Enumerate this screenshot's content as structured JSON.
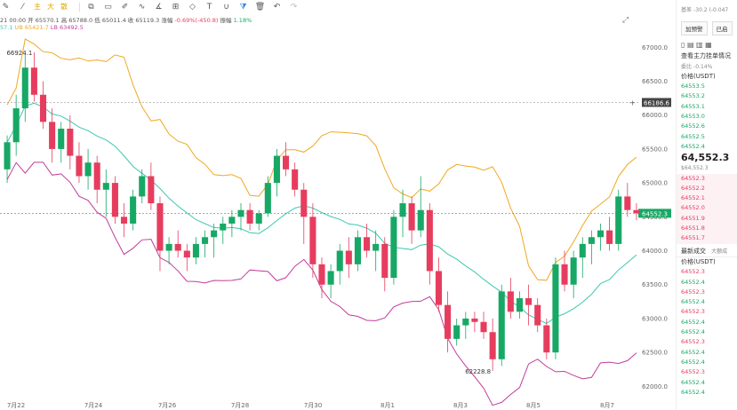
{
  "toolbar": {
    "ma_labels": [
      "主",
      "大",
      "散"
    ]
  },
  "info": {
    "date": "21 00:00",
    "open_label": "开",
    "open": "65570.1",
    "high_label": "高",
    "high": "65788.0",
    "low_label": "低",
    "low": "65011.4",
    "close_label": "收",
    "close": "65119.3",
    "change_label": "涨幅",
    "change": "-0.69%(-450.8)",
    "amp_label": "振幅",
    "amp": "1.18%",
    "bb_partial": "57.1",
    "ub_label": "UB",
    "ub": "65421.7",
    "lb_label": "LB",
    "lb": "63492.5"
  },
  "chart_data": {
    "type": "candlestick",
    "y_ticks": [
      67000,
      66500,
      66000,
      65500,
      65000,
      64500,
      64000,
      63500,
      63000,
      62500,
      62000
    ],
    "ylim": [
      61900,
      67200
    ],
    "x_ticks": [
      "7月22",
      "7月24",
      "7月26",
      "7月28",
      "7月30",
      "8月1",
      "8月3",
      "8月5",
      "8月7"
    ],
    "last_price": 64552.3,
    "reference_price": 66186.6,
    "max_annotation": "66924.1",
    "min_annotation": "62228.8",
    "candles": [
      [
        65200,
        65700,
        65000,
        65600
      ],
      [
        65600,
        66300,
        65400,
        66100
      ],
      [
        66100,
        66900,
        65900,
        66700
      ],
      [
        66700,
        66924,
        66200,
        66300
      ],
      [
        66300,
        66500,
        65800,
        65900
      ],
      [
        65900,
        66100,
        65300,
        65500
      ],
      [
        65500,
        65900,
        65300,
        65800
      ],
      [
        65800,
        66000,
        65200,
        65400
      ],
      [
        65400,
        65600,
        65000,
        65100
      ],
      [
        65100,
        65500,
        64900,
        65300
      ],
      [
        65300,
        65400,
        64700,
        64900
      ],
      [
        64900,
        65200,
        64500,
        65000
      ],
      [
        65000,
        65100,
        64400,
        64500
      ],
      [
        64500,
        64700,
        64200,
        64400
      ],
      [
        64400,
        64900,
        64300,
        64800
      ],
      [
        64800,
        65200,
        64700,
        65100
      ],
      [
        65100,
        65300,
        64600,
        64700
      ],
      [
        64700,
        64800,
        63700,
        64000
      ],
      [
        64000,
        64200,
        63800,
        64100
      ],
      [
        64100,
        64300,
        63900,
        64000
      ],
      [
        64000,
        64100,
        63700,
        63900
      ],
      [
        63900,
        64200,
        63800,
        64100
      ],
      [
        64100,
        64300,
        63900,
        64200
      ],
      [
        64200,
        64400,
        63900,
        64300
      ],
      [
        64300,
        64500,
        64100,
        64400
      ],
      [
        64400,
        64600,
        64200,
        64500
      ],
      [
        64500,
        64700,
        64300,
        64600
      ],
      [
        64600,
        64700,
        64300,
        64400
      ],
      [
        64400,
        64600,
        64300,
        64550
      ],
      [
        64550,
        65100,
        64500,
        65000
      ],
      [
        65000,
        65500,
        64800,
        65400
      ],
      [
        65400,
        65600,
        65100,
        65200
      ],
      [
        65200,
        65300,
        64800,
        64900
      ],
      [
        64900,
        65000,
        64100,
        64500
      ],
      [
        64500,
        64700,
        63600,
        63800
      ],
      [
        63800,
        63900,
        63300,
        63500
      ],
      [
        63500,
        63800,
        63300,
        63700
      ],
      [
        63700,
        64100,
        63500,
        64000
      ],
      [
        64000,
        64200,
        63600,
        63800
      ],
      [
        63800,
        64300,
        63700,
        64200
      ],
      [
        64200,
        64400,
        63900,
        64000
      ],
      [
        64000,
        64300,
        63700,
        64100
      ],
      [
        64100,
        64200,
        63400,
        63600
      ],
      [
        63600,
        64600,
        63500,
        64500
      ],
      [
        64500,
        64900,
        64200,
        64700
      ],
      [
        64700,
        64800,
        64100,
        64300
      ],
      [
        64300,
        65100,
        64200,
        64600
      ],
      [
        64600,
        64700,
        63500,
        63700
      ],
      [
        63700,
        63900,
        63100,
        63200
      ],
      [
        63200,
        63400,
        62500,
        62700
      ],
      [
        62700,
        63000,
        62600,
        62900
      ],
      [
        62900,
        63100,
        62700,
        63000
      ],
      [
        63000,
        63100,
        62800,
        62950
      ],
      [
        62950,
        63100,
        62700,
        62800
      ],
      [
        62800,
        63000,
        62229,
        62400
      ],
      [
        62400,
        63500,
        62300,
        63400
      ],
      [
        63400,
        63600,
        63000,
        63100
      ],
      [
        63100,
        63400,
        63000,
        63300
      ],
      [
        63300,
        63500,
        62900,
        63200
      ],
      [
        63200,
        63300,
        62800,
        62900
      ],
      [
        62900,
        63000,
        62400,
        62500
      ],
      [
        62500,
        63900,
        62400,
        63800
      ],
      [
        63800,
        64000,
        63400,
        63500
      ],
      [
        63500,
        64000,
        63300,
        63900
      ],
      [
        63900,
        64200,
        63600,
        64100
      ],
      [
        64100,
        64300,
        63800,
        64200
      ],
      [
        64200,
        64400,
        64000,
        64300
      ],
      [
        64300,
        64500,
        64000,
        64100
      ],
      [
        64100,
        64900,
        64000,
        64800
      ],
      [
        64800,
        65000,
        64500,
        64600
      ],
      [
        64600,
        64700,
        64450,
        64552
      ]
    ]
  },
  "panel": {
    "base_label": "基差",
    "base_value": "-30.2 (-0.047",
    "btn1": "加预警",
    "btn2": "已启",
    "book_title": "查看主力挂单情况",
    "ratio_label": "委比",
    "ratio_value": "-0.14%",
    "price_header": "价格(USDT)",
    "asks": [
      "64553.5",
      "64553.2",
      "64553.1",
      "64553.0",
      "64552.6",
      "64552.5",
      "64552.4"
    ],
    "last": "64,552.3",
    "last_sub": "$64,552.3",
    "bids": [
      "64552.3",
      "64552.2",
      "64552.1",
      "64552.0",
      "64551.9",
      "64551.8",
      "64551.7"
    ],
    "trades_tab": "最新成交",
    "trades_tab2": "大额成",
    "trades_header": "价格(USDT)",
    "trades": [
      {
        "p": "64552.3",
        "side": "dn"
      },
      {
        "p": "64552.4",
        "side": "up"
      },
      {
        "p": "64552.3",
        "side": "dn"
      },
      {
        "p": "64552.4",
        "side": "up"
      },
      {
        "p": "64552.3",
        "side": "dn"
      },
      {
        "p": "64552.4",
        "side": "up"
      },
      {
        "p": "64552.4",
        "side": "up"
      },
      {
        "p": "64552.3",
        "side": "dn"
      },
      {
        "p": "64552.4",
        "side": "up"
      },
      {
        "p": "64552.4",
        "side": "up"
      },
      {
        "p": "64552.3",
        "side": "dn"
      },
      {
        "p": "64552.4",
        "side": "up"
      },
      {
        "p": "64552.4",
        "side": "up"
      }
    ]
  },
  "colors": {
    "up": "#17a865",
    "down": "#e63d5e",
    "ub": "#f0a820",
    "mb": "#3ec7b0",
    "lb": "#c23c9a"
  }
}
